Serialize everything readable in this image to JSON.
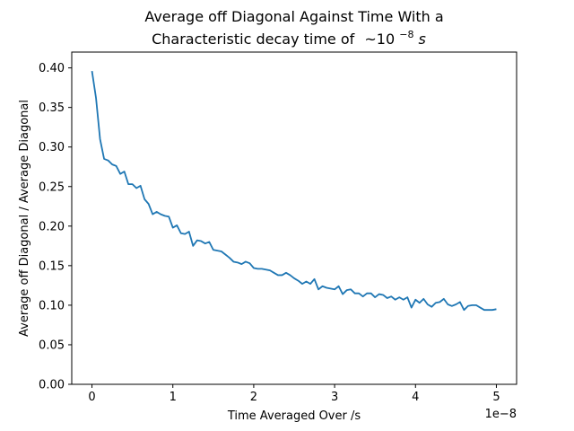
{
  "chart_data": {
    "type": "line",
    "title_line1": "Average off Diagonal Against Time With a",
    "title_line2": "Characteristic decay time of",
    "title_math_prefix": "~10",
    "title_math_exponent": "−8",
    "title_math_suffix": "s",
    "xlabel": "Time Averaged Over /s",
    "ylabel": "Average off Diagonal / Average Diagonal",
    "x_offset_label": "1e−8",
    "x_scale": 1e-08,
    "xlim": [
      -0.25,
      5.25
    ],
    "ylim": [
      0.0,
      0.42
    ],
    "x_ticks": [
      0,
      1,
      2,
      3,
      4,
      5
    ],
    "x_tick_labels": [
      "0",
      "1",
      "2",
      "3",
      "4",
      "5"
    ],
    "y_ticks": [
      0.0,
      0.05,
      0.1,
      0.15,
      0.2,
      0.25,
      0.3,
      0.35,
      0.4
    ],
    "y_tick_labels": [
      "0.00",
      "0.05",
      "0.10",
      "0.15",
      "0.20",
      "0.25",
      "0.30",
      "0.35",
      "0.40"
    ],
    "grid": false,
    "line_color": "#1f77b4",
    "series": [
      {
        "x": [
          0.0,
          0.05,
          0.1,
          0.15,
          0.2,
          0.25,
          0.3,
          0.35,
          0.4,
          0.45,
          0.5,
          0.55,
          0.6,
          0.65,
          0.7,
          0.75,
          0.8,
          0.85,
          0.9,
          0.95,
          1.0,
          1.05,
          1.1,
          1.15,
          1.2,
          1.25,
          1.3,
          1.35,
          1.4,
          1.45,
          1.5,
          1.55,
          1.6,
          1.65,
          1.7,
          1.75,
          1.8,
          1.85,
          1.9,
          1.95,
          2.0,
          2.05,
          2.1,
          2.15,
          2.2,
          2.25,
          2.3,
          2.35,
          2.4,
          2.45,
          2.5,
          2.55,
          2.6,
          2.65,
          2.7,
          2.75,
          2.8,
          2.85,
          2.9,
          2.95,
          3.0,
          3.05,
          3.1,
          3.15,
          3.2,
          3.25,
          3.3,
          3.35,
          3.4,
          3.45,
          3.5,
          3.55,
          3.6,
          3.65,
          3.7,
          3.75,
          3.8,
          3.85,
          3.9,
          3.95,
          4.0,
          4.05,
          4.1,
          4.15,
          4.2,
          4.25,
          4.3,
          4.35,
          4.4,
          4.45,
          4.5,
          4.55,
          4.6,
          4.65,
          4.7,
          4.75,
          4.8,
          4.85,
          4.9,
          4.95,
          5.0
        ],
        "y": [
          0.396,
          0.362,
          0.31,
          0.285,
          0.283,
          0.278,
          0.276,
          0.266,
          0.269,
          0.253,
          0.253,
          0.248,
          0.251,
          0.234,
          0.228,
          0.215,
          0.218,
          0.215,
          0.213,
          0.212,
          0.198,
          0.201,
          0.191,
          0.19,
          0.193,
          0.175,
          0.182,
          0.181,
          0.178,
          0.18,
          0.17,
          0.169,
          0.168,
          0.164,
          0.16,
          0.155,
          0.154,
          0.152,
          0.155,
          0.153,
          0.147,
          0.146,
          0.146,
          0.145,
          0.144,
          0.141,
          0.138,
          0.138,
          0.141,
          0.138,
          0.134,
          0.131,
          0.127,
          0.13,
          0.127,
          0.133,
          0.12,
          0.124,
          0.122,
          0.121,
          0.12,
          0.124,
          0.114,
          0.119,
          0.12,
          0.115,
          0.115,
          0.111,
          0.115,
          0.115,
          0.11,
          0.114,
          0.113,
          0.109,
          0.111,
          0.107,
          0.11,
          0.107,
          0.11,
          0.097,
          0.107,
          0.103,
          0.108,
          0.101,
          0.098,
          0.103,
          0.104,
          0.108,
          0.101,
          0.099,
          0.101,
          0.104,
          0.094,
          0.099,
          0.1,
          0.1,
          0.097,
          0.094,
          0.094,
          0.094,
          0.095
        ]
      }
    ]
  }
}
